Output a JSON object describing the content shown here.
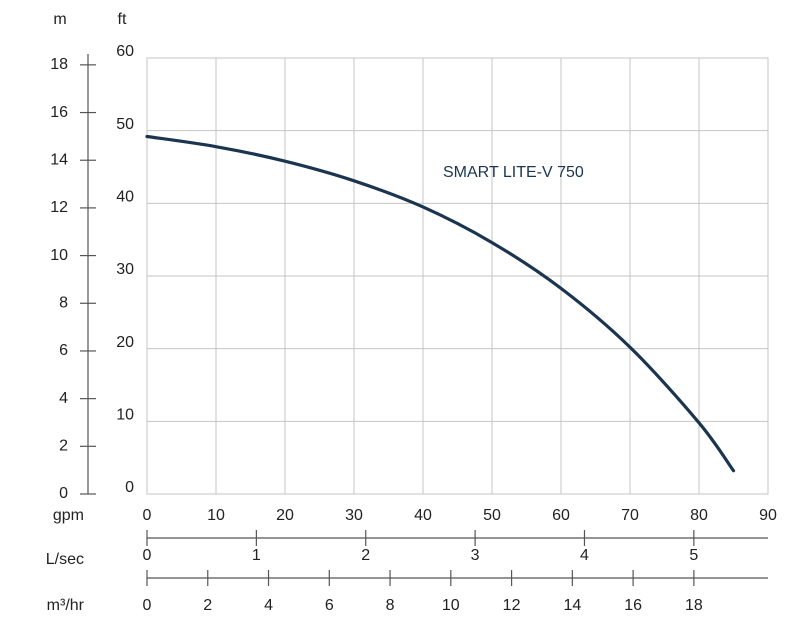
{
  "chart_data": {
    "type": "line",
    "x": [
      0,
      10,
      20,
      30,
      40,
      50,
      60,
      70,
      80,
      85
    ],
    "series": [
      {
        "name": "SMART LITE-V 750",
        "color": "#1b3550",
        "values": [
          49.2,
          47.8,
          45.8,
          43.1,
          39.5,
          34.6,
          28.3,
          20.2,
          9.8,
          3.2
        ]
      }
    ],
    "x_label": "gpm",
    "xlim": [
      0,
      90
    ],
    "xticks": [
      0,
      10,
      20,
      30,
      40,
      50,
      60,
      70,
      80,
      90
    ],
    "y_label": "ft",
    "ylim": [
      0,
      60
    ],
    "yticks": [
      0,
      10,
      20,
      30,
      40,
      50,
      60
    ],
    "y2_label": "m",
    "y2lim": [
      0,
      18.288
    ],
    "y2ticks": [
      0,
      2,
      4,
      6,
      8,
      10,
      12,
      14,
      16,
      18
    ],
    "extra_x_axes": [
      {
        "label": "L/sec",
        "lim": [
          0,
          5.678
        ],
        "ticks": [
          0,
          1,
          2,
          3,
          4,
          5
        ]
      },
      {
        "label": "m³/hr",
        "lim": [
          0,
          20.44
        ],
        "ticks": [
          0,
          2,
          4,
          6,
          8,
          10,
          12,
          14,
          16,
          18
        ]
      }
    ],
    "grid": true
  }
}
